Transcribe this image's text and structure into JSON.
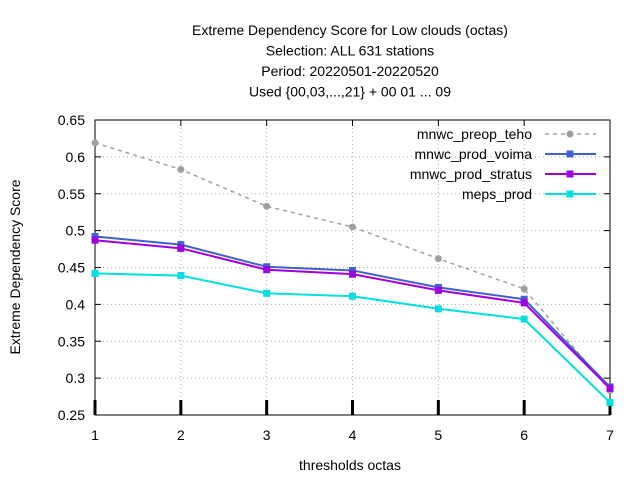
{
  "chart_data": {
    "type": "line",
    "title_lines": [
      "Extreme Dependency Score  for Low clouds (octas)",
      "Selection: ALL    631 stations",
      "Period: 20220501-20220520",
      "Used {00,03,...,21} + 00 01 ... 09"
    ],
    "xlabel": "thresholds octas",
    "ylabel": "Extreme Dependency Score",
    "x": [
      1,
      2,
      3,
      4,
      5,
      6,
      7
    ],
    "xlim": [
      1,
      7
    ],
    "ylim": [
      0.25,
      0.65
    ],
    "x_ticks": [
      1,
      2,
      3,
      4,
      5,
      6,
      7
    ],
    "y_ticks": [
      0.25,
      0.3,
      0.35,
      0.4,
      0.45,
      0.5,
      0.55,
      0.6,
      0.65
    ],
    "y_tick_labels": [
      "0.25",
      "0.3",
      "0.35",
      "0.4",
      "0.45",
      "0.5",
      "0.55",
      "0.6",
      "0.65"
    ],
    "grid": true,
    "legend_position": "top-right",
    "series": [
      {
        "name": "mnwc_preop_teho",
        "color": "#a0a0a0",
        "dashed": true,
        "marker": "circle",
        "values": [
          0.619,
          0.583,
          0.533,
          0.505,
          0.462,
          0.421,
          0.283
        ]
      },
      {
        "name": "mnwc_prod_voima",
        "color": "#4060d0",
        "dashed": false,
        "marker": "square",
        "values": [
          0.492,
          0.481,
          0.451,
          0.446,
          0.423,
          0.407,
          0.288
        ]
      },
      {
        "name": "mnwc_prod_stratus",
        "color": "#a000e0",
        "dashed": false,
        "marker": "square",
        "values": [
          0.487,
          0.476,
          0.447,
          0.441,
          0.419,
          0.402,
          0.286
        ]
      },
      {
        "name": "meps_prod",
        "color": "#00e0e0",
        "dashed": false,
        "marker": "square",
        "values": [
          0.442,
          0.439,
          0.415,
          0.411,
          0.394,
          0.38,
          0.267
        ]
      }
    ],
    "x_axis_markers": [
      1,
      2,
      3,
      4,
      5,
      6,
      7
    ]
  }
}
